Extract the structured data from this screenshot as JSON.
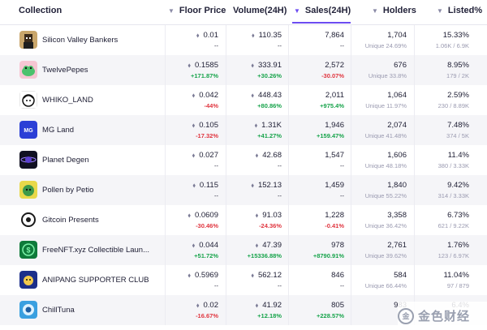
{
  "header": {
    "collection": "Collection",
    "floor_price": "Floor Price",
    "volume": "Volume(24H)",
    "sales": "Sales(24H)",
    "holders": "Holders",
    "listed": "Listed%"
  },
  "currency_symbol": "⬧",
  "rows": [
    {
      "name": "Silicon Valley Bankers",
      "avatar_icon": "pixel-portrait-icon",
      "avatar_color": "#c9a66b",
      "floor": "0.01",
      "floor_change": "--",
      "floor_dir": "neu",
      "volume": "110.35",
      "volume_change": "--",
      "volume_dir": "neu",
      "sales": "7,864",
      "sales_change": "--",
      "sales_dir": "neu",
      "holders": "1,704",
      "unique": "Unique 24.69%",
      "listed": "15.33%",
      "listed_sub": "1.06K / 6.9K"
    },
    {
      "name": "TwelvePepes",
      "avatar_icon": "pepe-icon",
      "avatar_color": "#f6c6d3",
      "floor": "0.1585",
      "floor_change": "+171.87%",
      "floor_dir": "pos",
      "volume": "333.91",
      "volume_change": "+30.26%",
      "volume_dir": "pos",
      "sales": "2,572",
      "sales_change": "-30.07%",
      "sales_dir": "neg",
      "holders": "676",
      "unique": "Unique 33.8%",
      "listed": "8.95%",
      "listed_sub": "179 / 2K"
    },
    {
      "name": "WHIKO_LAND",
      "avatar_icon": "whiko-face-icon",
      "avatar_color": "#ffffff",
      "floor": "0.042",
      "floor_change": "-44%",
      "floor_dir": "neg",
      "volume": "448.43",
      "volume_change": "+80.86%",
      "volume_dir": "pos",
      "sales": "2,011",
      "sales_change": "+975.4%",
      "sales_dir": "pos",
      "holders": "1,064",
      "unique": "Unique 11.97%",
      "listed": "2.59%",
      "listed_sub": "230 / 8.89K"
    },
    {
      "name": "MG Land",
      "avatar_icon": "mg-logo-icon",
      "avatar_color": "#2b3fd6",
      "floor": "0.105",
      "floor_change": "-17.32%",
      "floor_dir": "neg",
      "volume": "1.31K",
      "volume_change": "+41.27%",
      "volume_dir": "pos",
      "sales": "1,946",
      "sales_change": "+159.47%",
      "sales_dir": "pos",
      "holders": "2,074",
      "unique": "Unique 41.48%",
      "listed": "7.48%",
      "listed_sub": "374 / 5K"
    },
    {
      "name": "Planet Degen",
      "avatar_icon": "planet-degen-icon",
      "avatar_color": "#111122",
      "floor": "0.027",
      "floor_change": "--",
      "floor_dir": "neu",
      "volume": "42.68",
      "volume_change": "--",
      "volume_dir": "neu",
      "sales": "1,547",
      "sales_change": "--",
      "sales_dir": "neu",
      "holders": "1,606",
      "unique": "Unique 48.18%",
      "listed": "11.4%",
      "listed_sub": "380 / 3.33K"
    },
    {
      "name": "Pollen by Petio",
      "avatar_icon": "pollen-icon",
      "avatar_color": "#e8d84a",
      "floor": "0.115",
      "floor_change": "--",
      "floor_dir": "neu",
      "volume": "152.13",
      "volume_change": "--",
      "volume_dir": "neu",
      "sales": "1,459",
      "sales_change": "--",
      "sales_dir": "neu",
      "holders": "1,840",
      "unique": "Unique 55.22%",
      "listed": "9.42%",
      "listed_sub": "314 / 3.33K"
    },
    {
      "name": "Gitcoin Presents",
      "avatar_icon": "gitcoin-icon",
      "avatar_color": "#1a1a1a",
      "floor": "0.0609",
      "floor_change": "-30.46%",
      "floor_dir": "neg",
      "volume": "91.03",
      "volume_change": "-24.36%",
      "volume_dir": "neg",
      "sales": "1,228",
      "sales_change": "-0.41%",
      "sales_dir": "neg",
      "holders": "3,358",
      "unique": "Unique 36.42%",
      "listed": "6.73%",
      "listed_sub": "621 / 9.22K"
    },
    {
      "name": "FreeNFT.xyz Collectible Laun...",
      "avatar_icon": "dollar-circle-icon",
      "avatar_color": "#0f7a3a",
      "floor": "0.044",
      "floor_change": "+51.72%",
      "floor_dir": "pos",
      "volume": "47.39",
      "volume_change": "+15336.88%",
      "volume_dir": "pos",
      "sales": "978",
      "sales_change": "+8790.91%",
      "sales_dir": "pos",
      "holders": "2,761",
      "unique": "Unique 39.62%",
      "listed": "1.76%",
      "listed_sub": "123 / 6.97K"
    },
    {
      "name": "ANIPANG SUPPORTER CLUB",
      "avatar_icon": "anipang-icon",
      "avatar_color": "#1c2f8a",
      "floor": "0.5969",
      "floor_change": "--",
      "floor_dir": "neu",
      "volume": "562.12",
      "volume_change": "--",
      "volume_dir": "neu",
      "sales": "846",
      "sales_change": "--",
      "sales_dir": "neu",
      "holders": "584",
      "unique": "Unique 66.44%",
      "listed": "11.04%",
      "listed_sub": "97 / 879"
    },
    {
      "name": "ChillTuna",
      "avatar_icon": "tuna-icon",
      "avatar_color": "#3aa0e0",
      "floor": "0.02",
      "floor_change": "-16.67%",
      "floor_dir": "neg",
      "volume": "41.92",
      "volume_change": "+12.18%",
      "volume_dir": "pos",
      "sales": "805",
      "sales_change": "+228.57%",
      "sales_dir": "pos",
      "holders": "983",
      "unique": "",
      "listed": "6.4%",
      "listed_sub": ""
    }
  ],
  "watermark": {
    "text": "金色财经",
    "icon": "jinse-logo-icon"
  },
  "colors": {
    "accent": "#6c4cf1",
    "positive": "#16a34a",
    "negative": "#e0353f",
    "row_alt": "#f5f5f8"
  }
}
